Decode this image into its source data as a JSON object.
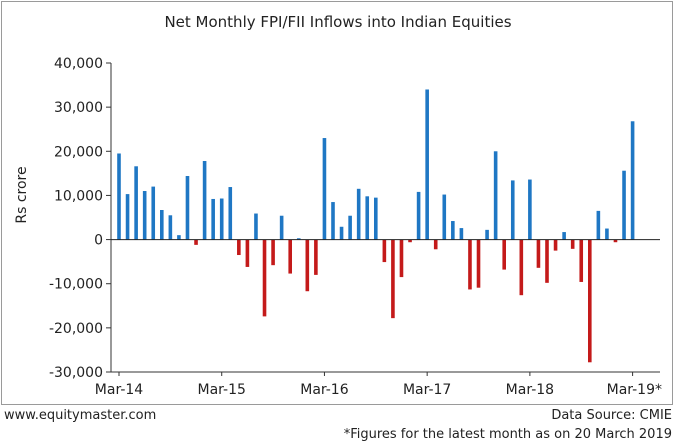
{
  "chart_data": {
    "type": "bar",
    "title": "Net Monthly FPI/FII Inflows into Indian Equities",
    "ylabel": "Rs crore",
    "xlabel": "",
    "ylim": [
      -30000,
      40000
    ],
    "yticks": [
      40000,
      30000,
      20000,
      10000,
      0,
      -10000,
      -20000,
      -30000
    ],
    "ytick_labels": [
      "40,000",
      "30,000",
      "20,000",
      "10,000",
      "0",
      "-10,000",
      "-20,000",
      "-30,000"
    ],
    "xtick_labels": [
      {
        "label": "Mar-14",
        "index": 0
      },
      {
        "label": "Mar-15",
        "index": 12
      },
      {
        "label": "Mar-16",
        "index": 24
      },
      {
        "label": "Mar-17",
        "index": 36
      },
      {
        "label": "Mar-18",
        "index": 48
      },
      {
        "label": "Mar-19*",
        "index": 60
      }
    ],
    "grid": false,
    "positive_color": "#1f77c4",
    "negative_color": "#c41a1a",
    "values": [
      19500,
      10300,
      16600,
      11000,
      12000,
      6700,
      5500,
      1000,
      14400,
      -1200,
      17800,
      9200,
      9300,
      11900,
      -3500,
      -6200,
      5900,
      -17400,
      -5800,
      5400,
      -7700,
      300,
      -11700,
      -8000,
      23000,
      8500,
      2900,
      5400,
      11500,
      9800,
      9500,
      -5100,
      -17800,
      -8500,
      -600,
      10800,
      34000,
      -2200,
      10200,
      4200,
      2600,
      -11300,
      -10900,
      2200,
      20000,
      -6800,
      13400,
      -12600,
      13600,
      -6400,
      -9800,
      -2500,
      1700,
      -2100,
      -9600,
      -27800,
      6500,
      2500,
      -600,
      15600,
      26800
    ]
  },
  "footer": {
    "website": "www.equitymaster.com",
    "source": "Data Source: CMIE",
    "note": "*Figures for the latest month as on 20 March 2019"
  }
}
